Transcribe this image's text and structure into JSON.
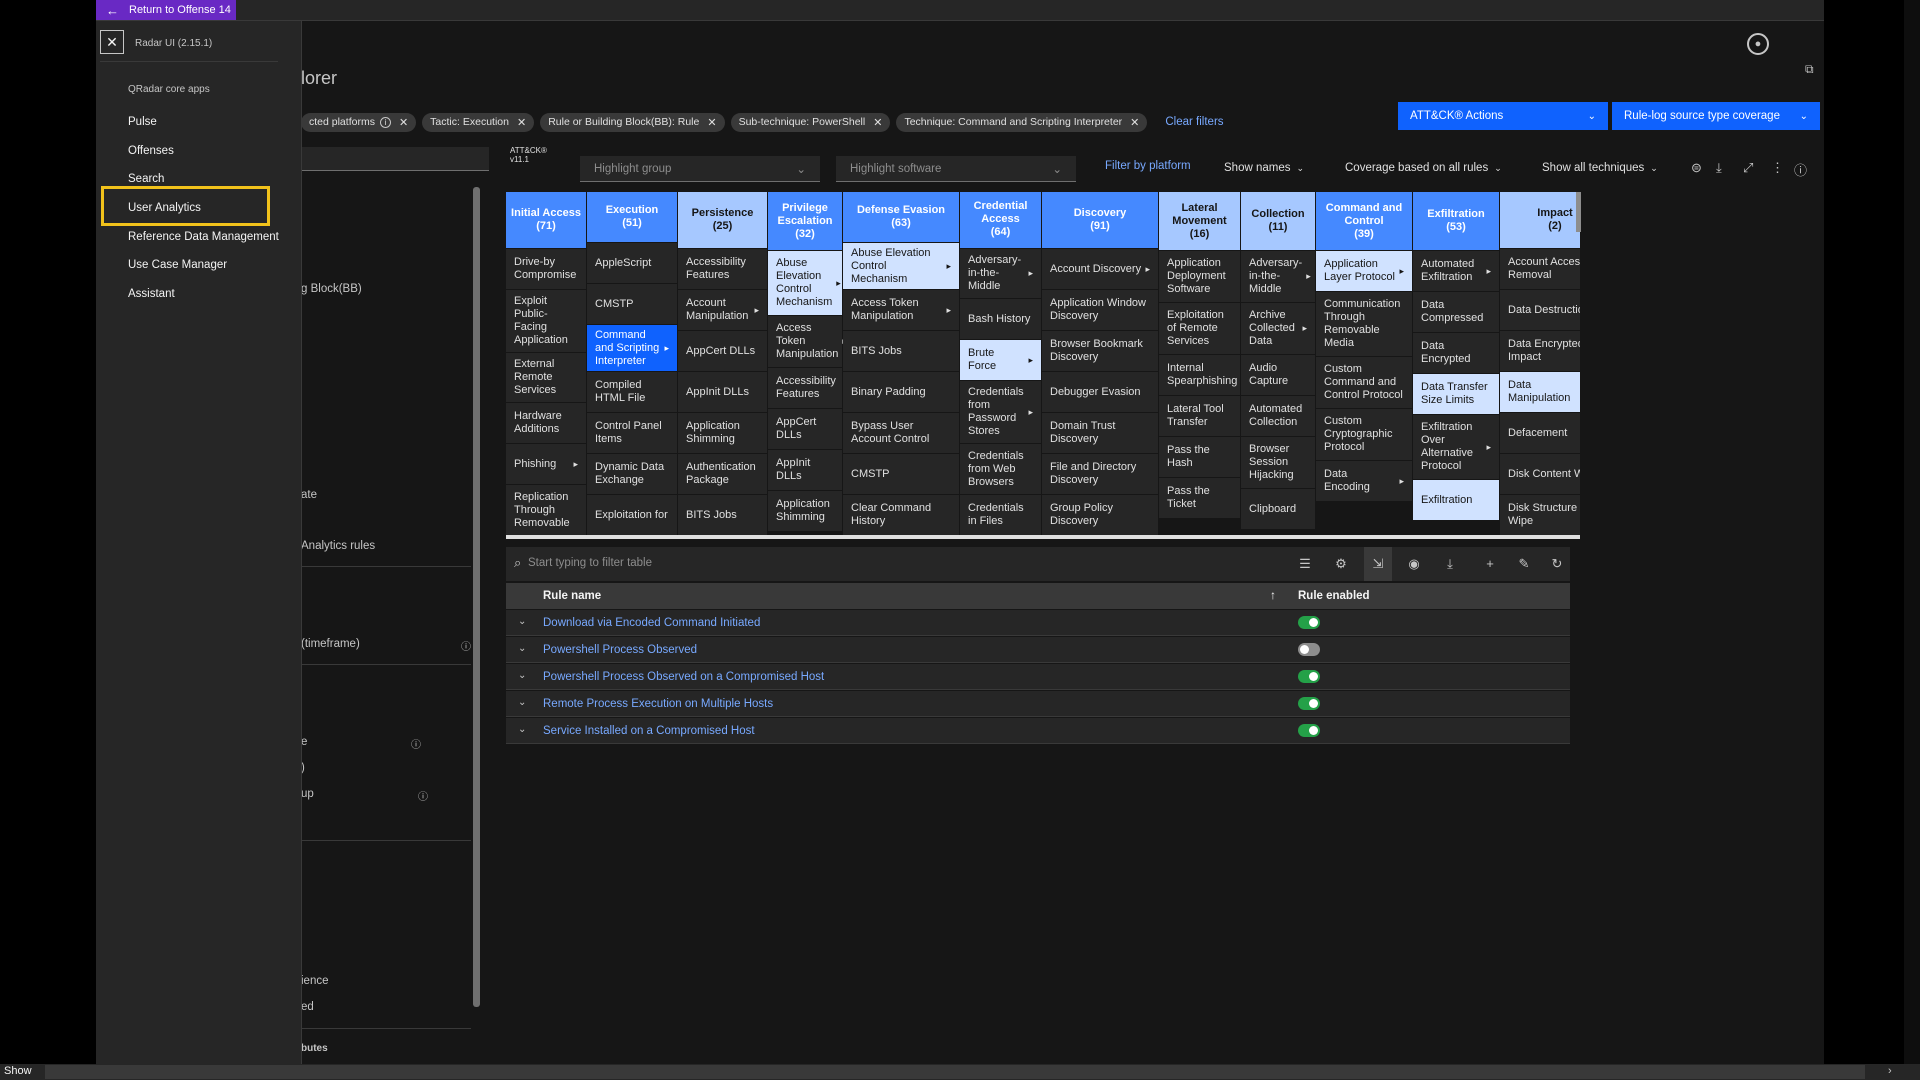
{
  "topbar": {
    "return_label": "Return to Offense 14"
  },
  "sidenav": {
    "version": "Radar UI (2.15.1)",
    "section": "QRadar core apps",
    "items": [
      "Pulse",
      "Offenses",
      "Search",
      "User Analytics",
      "Reference Data Management",
      "Use Case Manager",
      "Assistant"
    ],
    "highlighted": "User Analytics"
  },
  "page": {
    "title_partial": "lorer"
  },
  "filters": {
    "tags": [
      {
        "label": "cted platforms",
        "info": true
      },
      {
        "label": "Tactic: Execution"
      },
      {
        "label": "Rule or Building Block(BB): Rule"
      },
      {
        "label": "Sub-technique: PowerShell"
      },
      {
        "label": "Technique: Command and Scripting Interpreter"
      }
    ],
    "clear_label": "Clear filters"
  },
  "actions": {
    "attack_actions": "ATT&CK® Actions",
    "coverage_dropdown": "Rule-log source type coverage"
  },
  "left_panel": {
    "texts": [
      "g Block(BB)",
      "ate",
      "Analytics rules",
      "(timeframe)",
      "e",
      ")",
      "up",
      "ience",
      "ed",
      "butes"
    ]
  },
  "toolbar": {
    "attack_version_line1": "ATT&CK®",
    "attack_version_line2": "v11.1",
    "highlight_group": "Highlight group",
    "highlight_software": "Highlight software",
    "filter_platform": "Filter by platform",
    "show_names": "Show names",
    "coverage": "Coverage based on all rules",
    "show_all": "Show all techniques"
  },
  "matrix": [
    {
      "name": "Initial Access",
      "count": "(71)",
      "shade": "mid",
      "w": 80,
      "cells": [
        {
          "t": "Drive-by Compromise"
        },
        {
          "t": "Exploit Public-Facing Application"
        },
        {
          "t": "External Remote Services"
        },
        {
          "t": "Hardware Additions"
        },
        {
          "t": "Phishing",
          "sub": true
        },
        {
          "t": "Replication Through Removable"
        }
      ]
    },
    {
      "name": "Execution",
      "count": "(51)",
      "shade": "mid",
      "w": 90,
      "cells": [
        {
          "t": "AppleScript"
        },
        {
          "t": "CMSTP"
        },
        {
          "t": "Command and Scripting Interpreter",
          "sub": true,
          "style": "sel"
        },
        {
          "t": "Compiled HTML File"
        },
        {
          "t": "Control Panel Items"
        },
        {
          "t": "Dynamic Data Exchange"
        },
        {
          "t": "Exploitation for"
        }
      ]
    },
    {
      "name": "Persistence",
      "count": "(25)",
      "shade": "light",
      "w": 89,
      "cells": [
        {
          "t": "Accessibility Features"
        },
        {
          "t": "Account Manipulation",
          "sub": true
        },
        {
          "t": "AppCert DLLs"
        },
        {
          "t": "AppInit DLLs"
        },
        {
          "t": "Application Shimming"
        },
        {
          "t": "Authentication Package"
        },
        {
          "t": "BITS Jobs"
        }
      ]
    },
    {
      "name": "Privilege Escalation",
      "count": "(32)",
      "shade": "mid",
      "w": 74,
      "cells": [
        {
          "t": "Abuse Elevation Control Mechanism",
          "sub": true,
          "style": "hl"
        },
        {
          "t": "Access Token Manipulation",
          "sub": true
        },
        {
          "t": "Accessibility Features"
        },
        {
          "t": "AppCert DLLs"
        },
        {
          "t": "AppInit DLLs"
        },
        {
          "t": "Application Shimming"
        }
      ]
    },
    {
      "name": "Defense Evasion",
      "count": "(63)",
      "shade": "mid",
      "w": 116,
      "cells": [
        {
          "t": "Abuse Elevation Control Mechanism",
          "sub": true,
          "style": "hl"
        },
        {
          "t": "Access Token Manipulation",
          "sub": true
        },
        {
          "t": "BITS Jobs"
        },
        {
          "t": "Binary Padding"
        },
        {
          "t": "Bypass User Account Control"
        },
        {
          "t": "CMSTP"
        },
        {
          "t": "Clear Command History"
        }
      ]
    },
    {
      "name": "Credential Access",
      "count": "(64)",
      "shade": "mid",
      "w": 81,
      "cells": [
        {
          "t": "Adversary-in-the-Middle",
          "sub": true
        },
        {
          "t": "Bash History"
        },
        {
          "t": "Brute Force",
          "sub": true,
          "style": "hl"
        },
        {
          "t": "Credentials from Password Stores",
          "sub": true
        },
        {
          "t": "Credentials from Web Browsers"
        },
        {
          "t": "Credentials in Files"
        }
      ]
    },
    {
      "name": "Discovery",
      "count": "(91)",
      "shade": "mid",
      "w": 116,
      "cells": [
        {
          "t": "Account Discovery",
          "sub": true
        },
        {
          "t": "Application Window Discovery"
        },
        {
          "t": "Browser Bookmark Discovery"
        },
        {
          "t": "Debugger Evasion"
        },
        {
          "t": "Domain Trust Discovery"
        },
        {
          "t": "File and Directory Discovery"
        },
        {
          "t": "Group Policy Discovery"
        }
      ]
    },
    {
      "name": "Lateral Movement",
      "count": "(16)",
      "shade": "light",
      "w": 81,
      "cells": [
        {
          "t": "Application Deployment Software"
        },
        {
          "t": "Exploitation of Remote Services"
        },
        {
          "t": "Internal Spearphishing"
        },
        {
          "t": "Lateral Tool Transfer"
        },
        {
          "t": "Pass the Hash"
        },
        {
          "t": "Pass the Ticket"
        }
      ]
    },
    {
      "name": "Collection",
      "count": "(11)",
      "shade": "light",
      "w": 74,
      "cells": [
        {
          "t": "Adversary-in-the-Middle",
          "sub": true
        },
        {
          "t": "Archive Collected Data",
          "sub": true
        },
        {
          "t": "Audio Capture"
        },
        {
          "t": "Automated Collection"
        },
        {
          "t": "Browser Session Hijacking"
        },
        {
          "t": "Clipboard"
        }
      ]
    },
    {
      "name": "Command and Control",
      "count": "(39)",
      "shade": "mid",
      "w": 96,
      "cells": [
        {
          "t": "Application Layer Protocol",
          "sub": true,
          "style": "hl"
        },
        {
          "t": "Communication Through Removable Media"
        },
        {
          "t": "Custom Command and Control Protocol"
        },
        {
          "t": "Custom Cryptographic Protocol"
        },
        {
          "t": "Data Encoding",
          "sub": true
        }
      ]
    },
    {
      "name": "Exfiltration",
      "count": "(53)",
      "shade": "mid",
      "w": 86,
      "cells": [
        {
          "t": "Automated Exfiltration",
          "sub": true
        },
        {
          "t": "Data Compressed"
        },
        {
          "t": "Data Encrypted"
        },
        {
          "t": "Data Transfer Size Limits",
          "style": "hl"
        },
        {
          "t": "Exfiltration Over Alternative Protocol",
          "sub": true
        },
        {
          "t": "Exfiltration",
          "style": "hl"
        }
      ]
    },
    {
      "name": "Impact",
      "count": "(2)",
      "shade": "light",
      "w": 110,
      "cells": [
        {
          "t": "Account Access Removal"
        },
        {
          "t": "Data Destruction"
        },
        {
          "t": "Data Encrypted for Impact"
        },
        {
          "t": "Data Manipulation",
          "sub": true,
          "style": "hl"
        },
        {
          "t": "Defacement",
          "sub": true
        },
        {
          "t": "Disk Content Wipe"
        },
        {
          "t": "Disk Structure Wipe"
        }
      ]
    }
  ],
  "table": {
    "search_placeholder": "Start typing to filter table",
    "col_rule": "Rule name",
    "col_enabled": "Rule enabled",
    "rows": [
      {
        "name": "Download via Encoded Command Initiated",
        "enabled": true
      },
      {
        "name": "Powershell Process Observed",
        "enabled": false
      },
      {
        "name": "Powershell Process Observed on a Compromised Host",
        "enabled": true
      },
      {
        "name": "Remote Process Execution on Multiple Hosts",
        "enabled": true
      },
      {
        "name": "Service Installed on a Compromised Host",
        "enabled": true
      }
    ]
  },
  "bottom": {
    "show_label": "Show"
  }
}
